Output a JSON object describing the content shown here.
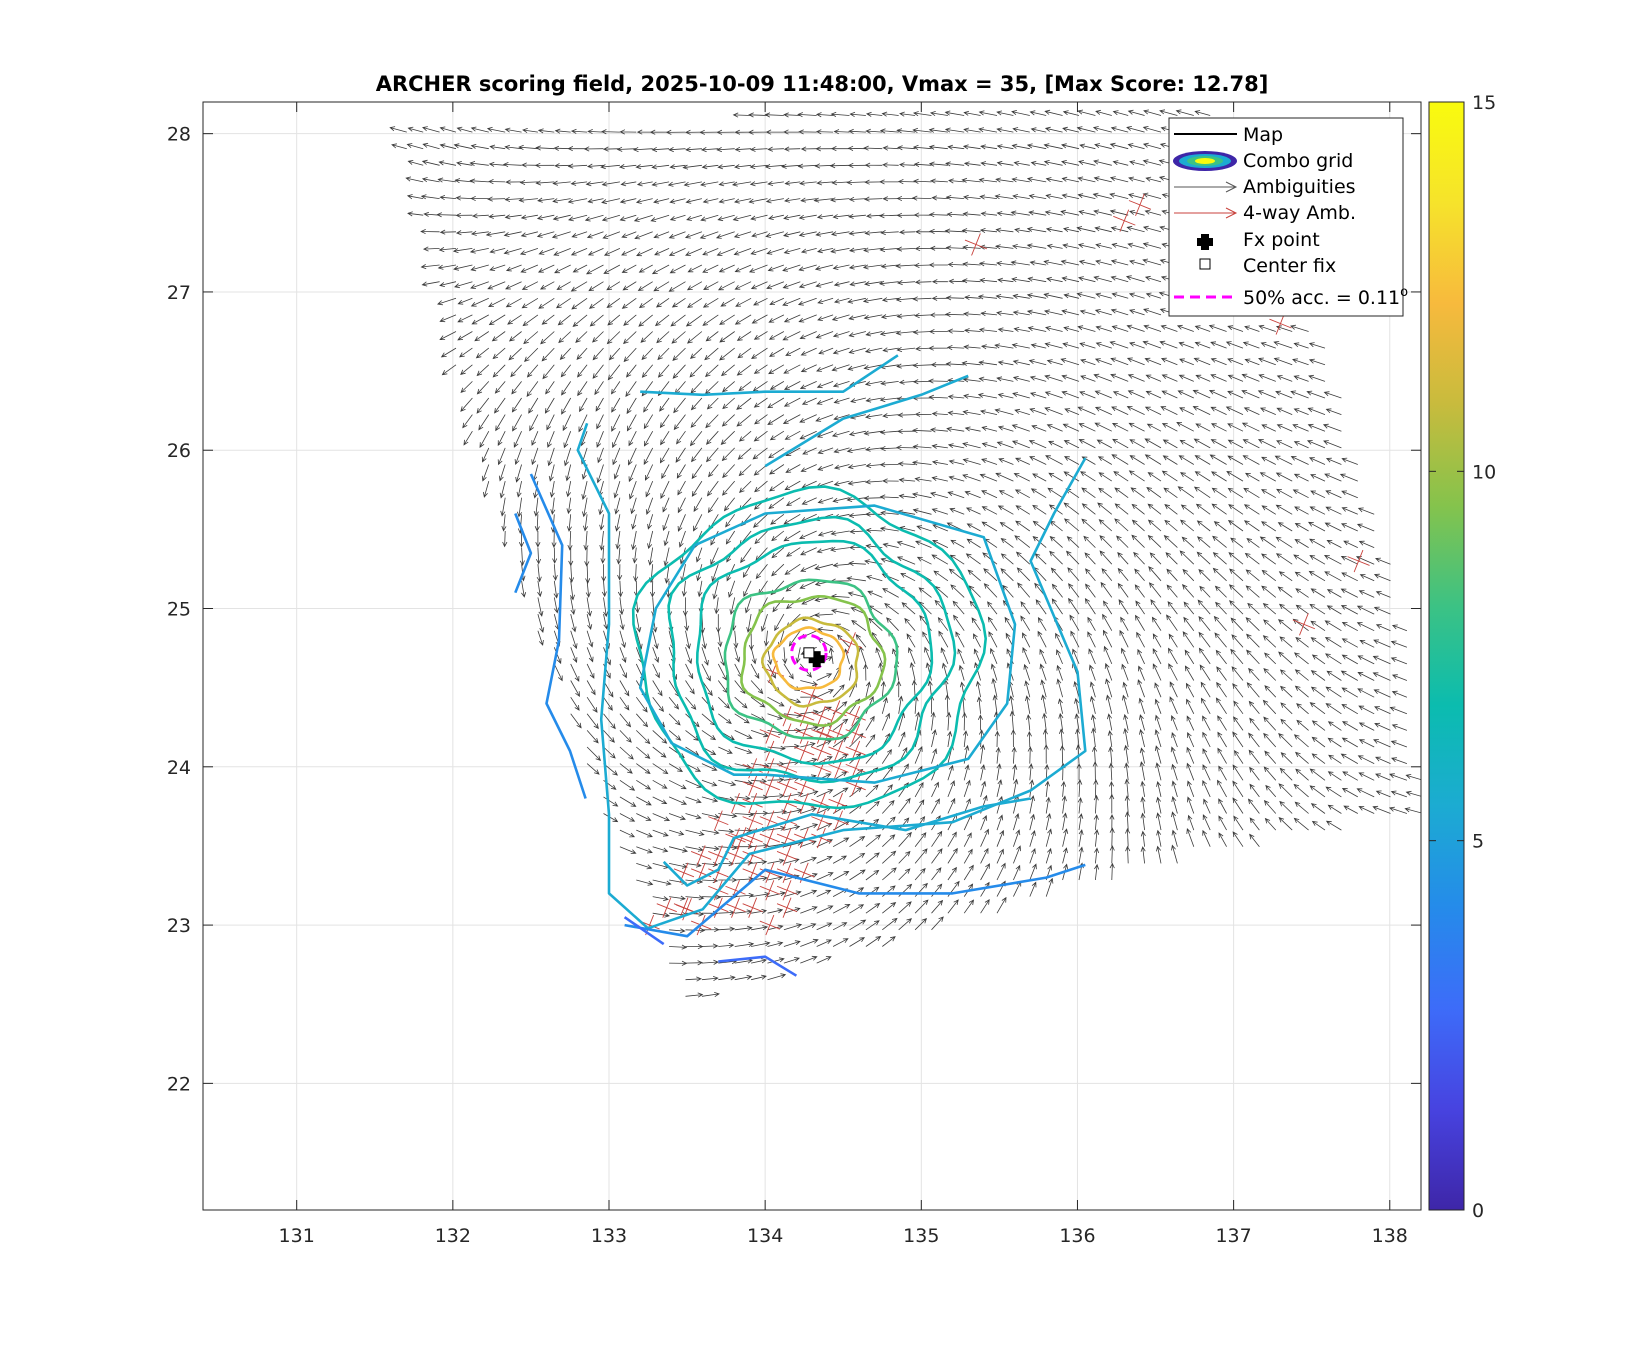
{
  "chart_data": {
    "type": "contour",
    "title": "ARCHER scoring field, 2025-10-09 11:48:00, Vmax = 35, [Max Score: 12.78]",
    "xlim": [
      130.4,
      138.2
    ],
    "ylim": [
      21.2,
      28.2
    ],
    "x_ticks": [
      "131",
      "132",
      "133",
      "134",
      "135",
      "136",
      "137",
      "138"
    ],
    "y_ticks": [
      "22",
      "23",
      "24",
      "25",
      "26",
      "27",
      "28"
    ],
    "grid": true,
    "colorbar": {
      "range": [
        0,
        15
      ],
      "tick_labels": [
        "0",
        "5",
        "10",
        "15"
      ],
      "colormap": [
        "#3e26a8",
        "#4743e0",
        "#3d6cf9",
        "#258bea",
        "#1cabd2",
        "#0bbcaf",
        "#3cc284",
        "#85c34c",
        "#c8bb3d",
        "#f7ba3d",
        "#f6e32b",
        "#f9fb0e"
      ]
    },
    "fx_point": {
      "lon": 134.33,
      "lat": 24.68
    },
    "center_fix": {
      "lon": 134.28,
      "lat": 24.72
    },
    "accuracy_radius_deg": 0.11,
    "max_score": 12.78,
    "legend": {
      "position": "top-right",
      "entries": [
        "Map",
        "Combo grid",
        "Ambiguities",
        "4-way Amb.",
        "Fx point",
        "Center fix",
        "50% acc. = 0.11"
      ],
      "degree_symbol": "o"
    },
    "colors": {
      "ambiguity": "#3a3a3a",
      "four_way": "#c8423c",
      "acc_circle": "#ff00ff"
    }
  }
}
